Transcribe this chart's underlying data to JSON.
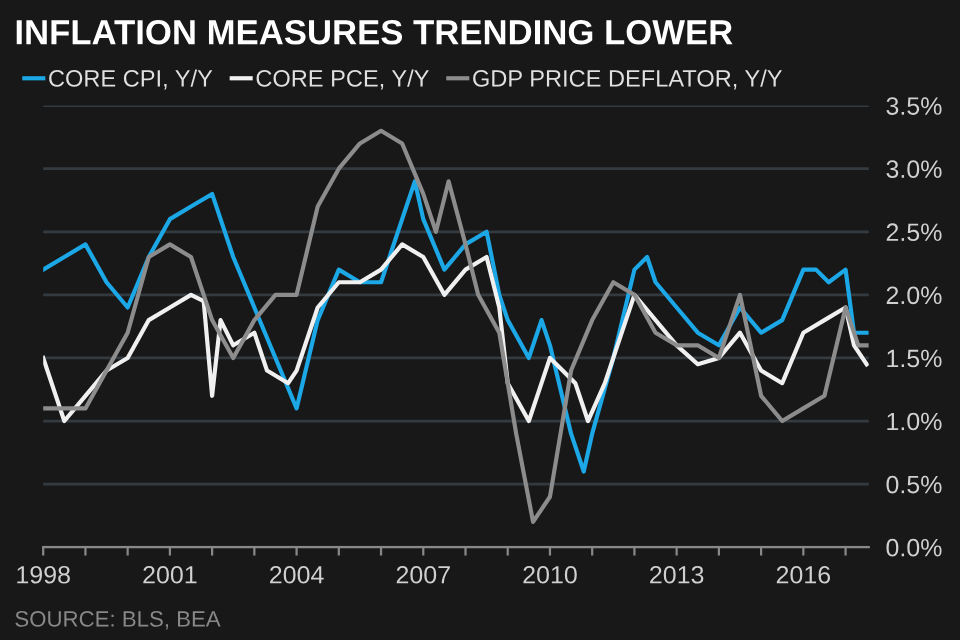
{
  "chart_data": {
    "type": "line",
    "title": "INFLATION MEASURES TRENDING LOWER",
    "annotations": [
      "SOURCE: BLS, BEA"
    ],
    "series": [
      {
        "name": "CORE CPI, Y/Y",
        "color": "#1ca7e6",
        "x": [
          1998,
          1998.5,
          1999,
          1999.5,
          2000,
          2000.5,
          2001,
          2001.5,
          2002,
          2002.5,
          2003,
          2003.5,
          2004,
          2004.5,
          2005,
          2005.5,
          2006,
          2006.5,
          2006.8,
          2007,
          2007.5,
          2008,
          2008.5,
          2008.8,
          2009,
          2009.5,
          2009.8,
          2010,
          2010.5,
          2010.8,
          2011,
          2011.5,
          2012,
          2012.3,
          2012.5,
          2013,
          2013.5,
          2014,
          2014.5,
          2015,
          2015.5,
          2016,
          2016.3,
          2016.6,
          2017,
          2017.2,
          2017.5
        ],
        "values": [
          2.2,
          2.3,
          2.4,
          2.1,
          1.9,
          2.3,
          2.6,
          2.7,
          2.8,
          2.3,
          1.9,
          1.5,
          1.1,
          1.8,
          2.2,
          2.1,
          2.1,
          2.6,
          2.9,
          2.6,
          2.2,
          2.4,
          2.5,
          2.0,
          1.8,
          1.5,
          1.8,
          1.6,
          0.9,
          0.6,
          0.9,
          1.5,
          2.2,
          2.3,
          2.1,
          1.9,
          1.7,
          1.6,
          1.9,
          1.7,
          1.8,
          2.2,
          2.2,
          2.1,
          2.2,
          1.7,
          1.7
        ]
      },
      {
        "name": "CORE PCE, Y/Y",
        "color": "#f0f0f0",
        "x": [
          1998,
          1998.3,
          1998.5,
          1999,
          1999.5,
          2000,
          2000.5,
          2001,
          2001.5,
          2001.8,
          2002,
          2002.2,
          2002.5,
          2003,
          2003.3,
          2003.8,
          2004,
          2004.5,
          2005,
          2005.5,
          2006,
          2006.5,
          2007,
          2007.5,
          2008,
          2008.5,
          2008.8,
          2009,
          2009.5,
          2009.8,
          2010,
          2010.3,
          2010.6,
          2010.9,
          2011.3,
          2011.7,
          2012,
          2012.5,
          2013,
          2013.5,
          2014,
          2014.5,
          2015,
          2015.5,
          2016,
          2016.5,
          2017,
          2017.2,
          2017.5
        ],
        "values": [
          1.5,
          1.2,
          1.0,
          1.2,
          1.4,
          1.5,
          1.8,
          1.9,
          2.0,
          1.95,
          1.2,
          1.8,
          1.6,
          1.7,
          1.4,
          1.3,
          1.4,
          1.9,
          2.1,
          2.1,
          2.2,
          2.4,
          2.3,
          2.0,
          2.2,
          2.3,
          1.9,
          1.3,
          1.0,
          1.3,
          1.5,
          1.4,
          1.3,
          1.0,
          1.3,
          1.7,
          2.0,
          1.8,
          1.6,
          1.45,
          1.5,
          1.7,
          1.4,
          1.3,
          1.7,
          1.8,
          1.9,
          1.6,
          1.45
        ]
      },
      {
        "name": "GDP PRICE DEFLATOR, Y/Y",
        "color": "#8c8c8c",
        "x": [
          1998,
          1998.5,
          1999,
          1999.5,
          2000,
          2000.5,
          2001,
          2001.5,
          2002,
          2002.5,
          2003,
          2003.5,
          2004,
          2004.5,
          2005,
          2005.5,
          2006,
          2006.5,
          2007,
          2007.3,
          2007.6,
          2008,
          2008.3,
          2008.8,
          2009.2,
          2009.6,
          2010,
          2010.5,
          2011,
          2011.5,
          2012,
          2012.5,
          2013,
          2013.5,
          2014,
          2014.5,
          2015,
          2015.5,
          2016,
          2016.5,
          2017,
          2017.3,
          2017.5
        ],
        "values": [
          1.1,
          1.1,
          1.1,
          1.4,
          1.7,
          2.3,
          2.4,
          2.3,
          1.8,
          1.5,
          1.8,
          2.0,
          2.0,
          2.7,
          3.0,
          3.2,
          3.3,
          3.2,
          2.8,
          2.5,
          2.9,
          2.4,
          2.0,
          1.7,
          0.9,
          0.2,
          0.4,
          1.4,
          1.8,
          2.1,
          2.0,
          1.7,
          1.6,
          1.6,
          1.5,
          2.0,
          1.2,
          1.0,
          1.1,
          1.2,
          1.9,
          1.6,
          1.6
        ]
      }
    ],
    "xlim": [
      1998,
      2017.55
    ],
    "ylim": [
      0,
      3.5
    ],
    "xticks": [
      1998,
      {
        "value": 1999,
        "label": null
      },
      {
        "value": 2000,
        "label": null
      },
      2001,
      {
        "value": 2002,
        "label": null
      },
      {
        "value": 2003,
        "label": null
      },
      2004,
      {
        "value": 2005,
        "label": null
      },
      {
        "value": 2006,
        "label": null
      },
      2007,
      {
        "value": 2008,
        "label": null
      },
      {
        "value": 2009,
        "label": null
      },
      2010,
      {
        "value": 2011,
        "label": null
      },
      {
        "value": 2012,
        "label": null
      },
      2013,
      {
        "value": 2014,
        "label": null
      },
      {
        "value": 2015,
        "label": null
      },
      2016,
      {
        "value": 2017,
        "label": null
      }
    ],
    "yticks": [
      {
        "value": 0,
        "label": "0.0%"
      },
      {
        "value": 0.5,
        "label": "0.5%"
      },
      {
        "value": 1,
        "label": "1.0%"
      },
      {
        "value": 1.5,
        "label": "1.5%"
      },
      {
        "value": 2,
        "label": "2.0%"
      },
      {
        "value": 2.5,
        "label": "2.5%"
      },
      {
        "value": 3,
        "label": "3.0%"
      },
      {
        "value": 3.5,
        "label": "3.5%"
      }
    ],
    "grid": "y",
    "legend": "top left",
    "marker": "none",
    "line_style": "solid"
  }
}
